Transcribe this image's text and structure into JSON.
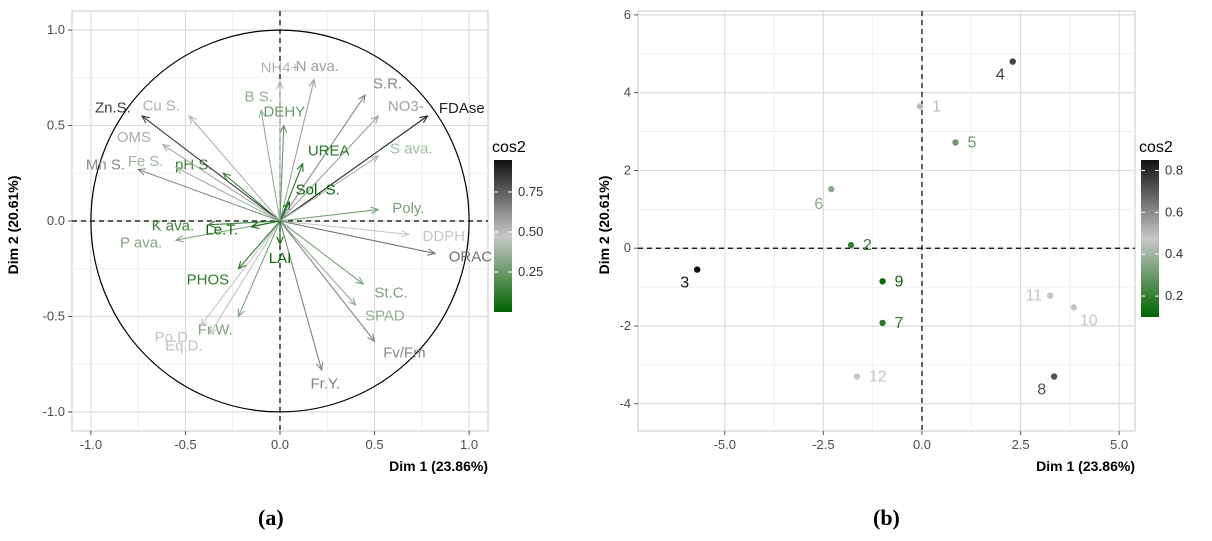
{
  "chart_data": [
    {
      "type": "scatter",
      "subtype": "pca-variable-correlation-circle",
      "panel_label": "(a)",
      "xlabel": "Dim 1 (23.86%)",
      "ylabel": "Dim 2 (20.61%)",
      "xlim": [
        -1.1,
        1.1
      ],
      "ylim": [
        -1.1,
        1.1
      ],
      "xticks": [
        "-1.0",
        "-0.5",
        "0.0",
        "0.5",
        "1.0"
      ],
      "yticks": [
        "-1.0",
        "-0.5",
        "0.0",
        "0.5",
        "1.0"
      ],
      "grid": true,
      "legend": {
        "title": "cos2",
        "position": "right",
        "ticks": [
          "0.25",
          "0.50",
          "0.75"
        ],
        "min": 0.0,
        "max": 0.95,
        "color_low": "#006400",
        "color_mid": "#c8c8c8",
        "color_high": "#111111"
      },
      "variables": [
        {
          "name": "NH4+",
          "x": 0.0,
          "y": 0.73,
          "cos2": 0.53
        },
        {
          "name": "N ava.",
          "x": 0.18,
          "y": 0.74,
          "cos2": 0.58
        },
        {
          "name": "S.R.",
          "x": 0.45,
          "y": 0.66,
          "cos2": 0.64
        },
        {
          "name": "NO3-",
          "x": 0.52,
          "y": 0.55,
          "cos2": 0.58
        },
        {
          "name": "FDAse",
          "x": 0.78,
          "y": 0.55,
          "cos2": 0.91
        },
        {
          "name": "S ava.",
          "x": 0.52,
          "y": 0.34,
          "cos2": 0.39
        },
        {
          "name": "Poly.",
          "x": 0.52,
          "y": 0.06,
          "cos2": 0.28
        },
        {
          "name": "DDPH",
          "x": 0.68,
          "y": -0.07,
          "cos2": 0.47
        },
        {
          "name": "ORAC",
          "x": 0.82,
          "y": -0.17,
          "cos2": 0.7
        },
        {
          "name": "St.C.",
          "x": 0.44,
          "y": -0.33,
          "cos2": 0.3
        },
        {
          "name": "SPAD",
          "x": 0.4,
          "y": -0.44,
          "cos2": 0.35
        },
        {
          "name": "Fv/Fm",
          "x": 0.5,
          "y": -0.63,
          "cos2": 0.65
        },
        {
          "name": "Fr.Y.",
          "x": 0.22,
          "y": -0.78,
          "cos2": 0.66
        },
        {
          "name": "Fr.W.",
          "x": -0.22,
          "y": -0.5,
          "cos2": 0.3
        },
        {
          "name": "Eq.D.",
          "x": -0.37,
          "y": -0.59,
          "cos2": 0.49
        },
        {
          "name": "Po.D.",
          "x": -0.42,
          "y": -0.55,
          "cos2": 0.48
        },
        {
          "name": "PHOS",
          "x": -0.22,
          "y": -0.25,
          "cos2": 0.11
        },
        {
          "name": "LAI",
          "x": 0.0,
          "y": -0.12,
          "cos2": 0.02
        },
        {
          "name": "P ava.",
          "x": -0.55,
          "y": -0.1,
          "cos2": 0.31
        },
        {
          "name": "K ava.",
          "x": -0.38,
          "y": -0.02,
          "cos2": 0.14
        },
        {
          "name": "Le.T.",
          "x": -0.15,
          "y": -0.03,
          "cos2": 0.02
        },
        {
          "name": "Sol. S.",
          "x": 0.05,
          "y": 0.1,
          "cos2": 0.01
        },
        {
          "name": "UREA",
          "x": 0.12,
          "y": 0.3,
          "cos2": 0.1
        },
        {
          "name": "DEHY",
          "x": 0.02,
          "y": 0.5,
          "cos2": 0.25
        },
        {
          "name": "pH S.",
          "x": -0.3,
          "y": 0.25,
          "cos2": 0.15
        },
        {
          "name": "B S.",
          "x": -0.1,
          "y": 0.58,
          "cos2": 0.35
        },
        {
          "name": "Cu S.",
          "x": -0.48,
          "y": 0.55,
          "cos2": 0.54
        },
        {
          "name": "Zn.S.",
          "x": -0.73,
          "y": 0.55,
          "cos2": 0.84
        },
        {
          "name": "OMS",
          "x": -0.62,
          "y": 0.4,
          "cos2": 0.55
        },
        {
          "name": "Fe S.",
          "x": -0.55,
          "y": 0.28,
          "cos2": 0.38
        },
        {
          "name": "Mn S.",
          "x": -0.75,
          "y": 0.27,
          "cos2": 0.64
        }
      ]
    },
    {
      "type": "scatter",
      "subtype": "pca-individuals",
      "panel_label": "(b)",
      "xlabel": "Dim 1 (23.86%)",
      "ylabel": "Dim 2 (20.61%)",
      "xlim": [
        -7.2,
        5.4
      ],
      "ylim": [
        -4.7,
        6.1
      ],
      "xticks": [
        "-5.0",
        "-2.5",
        "0.0",
        "2.5",
        "5.0"
      ],
      "yticks": [
        "-4",
        "-2",
        "0",
        "2",
        "4",
        "6"
      ],
      "grid": true,
      "legend": {
        "title": "cos2",
        "position": "right",
        "ticks": [
          "0.2",
          "0.4",
          "0.6",
          "0.8"
        ],
        "min": 0.1,
        "max": 0.85,
        "color_low": "#006400",
        "color_mid": "#c8c8c8",
        "color_high": "#111111"
      },
      "points": [
        {
          "label": "1",
          "x": -0.05,
          "y": 3.65,
          "cos2": 0.5
        },
        {
          "label": "2",
          "x": -1.8,
          "y": 0.08,
          "cos2": 0.2
        },
        {
          "label": "3",
          "x": -5.7,
          "y": -0.55,
          "cos2": 0.85
        },
        {
          "label": "4",
          "x": 2.3,
          "y": 4.8,
          "cos2": 0.75
        },
        {
          "label": "5",
          "x": 0.85,
          "y": 2.72,
          "cos2": 0.3
        },
        {
          "label": "6",
          "x": -2.3,
          "y": 1.52,
          "cos2": 0.36
        },
        {
          "label": "7",
          "x": -1.0,
          "y": -1.92,
          "cos2": 0.18
        },
        {
          "label": "8",
          "x": 3.35,
          "y": -3.3,
          "cos2": 0.72
        },
        {
          "label": "9",
          "x": -1.0,
          "y": -0.85,
          "cos2": 0.12
        },
        {
          "label": "10",
          "x": 3.85,
          "y": -1.52,
          "cos2": 0.47
        },
        {
          "label": "11",
          "x": 3.25,
          "y": -1.22,
          "cos2": 0.48
        },
        {
          "label": "12",
          "x": -1.65,
          "y": -3.3,
          "cos2": 0.48
        }
      ]
    }
  ]
}
